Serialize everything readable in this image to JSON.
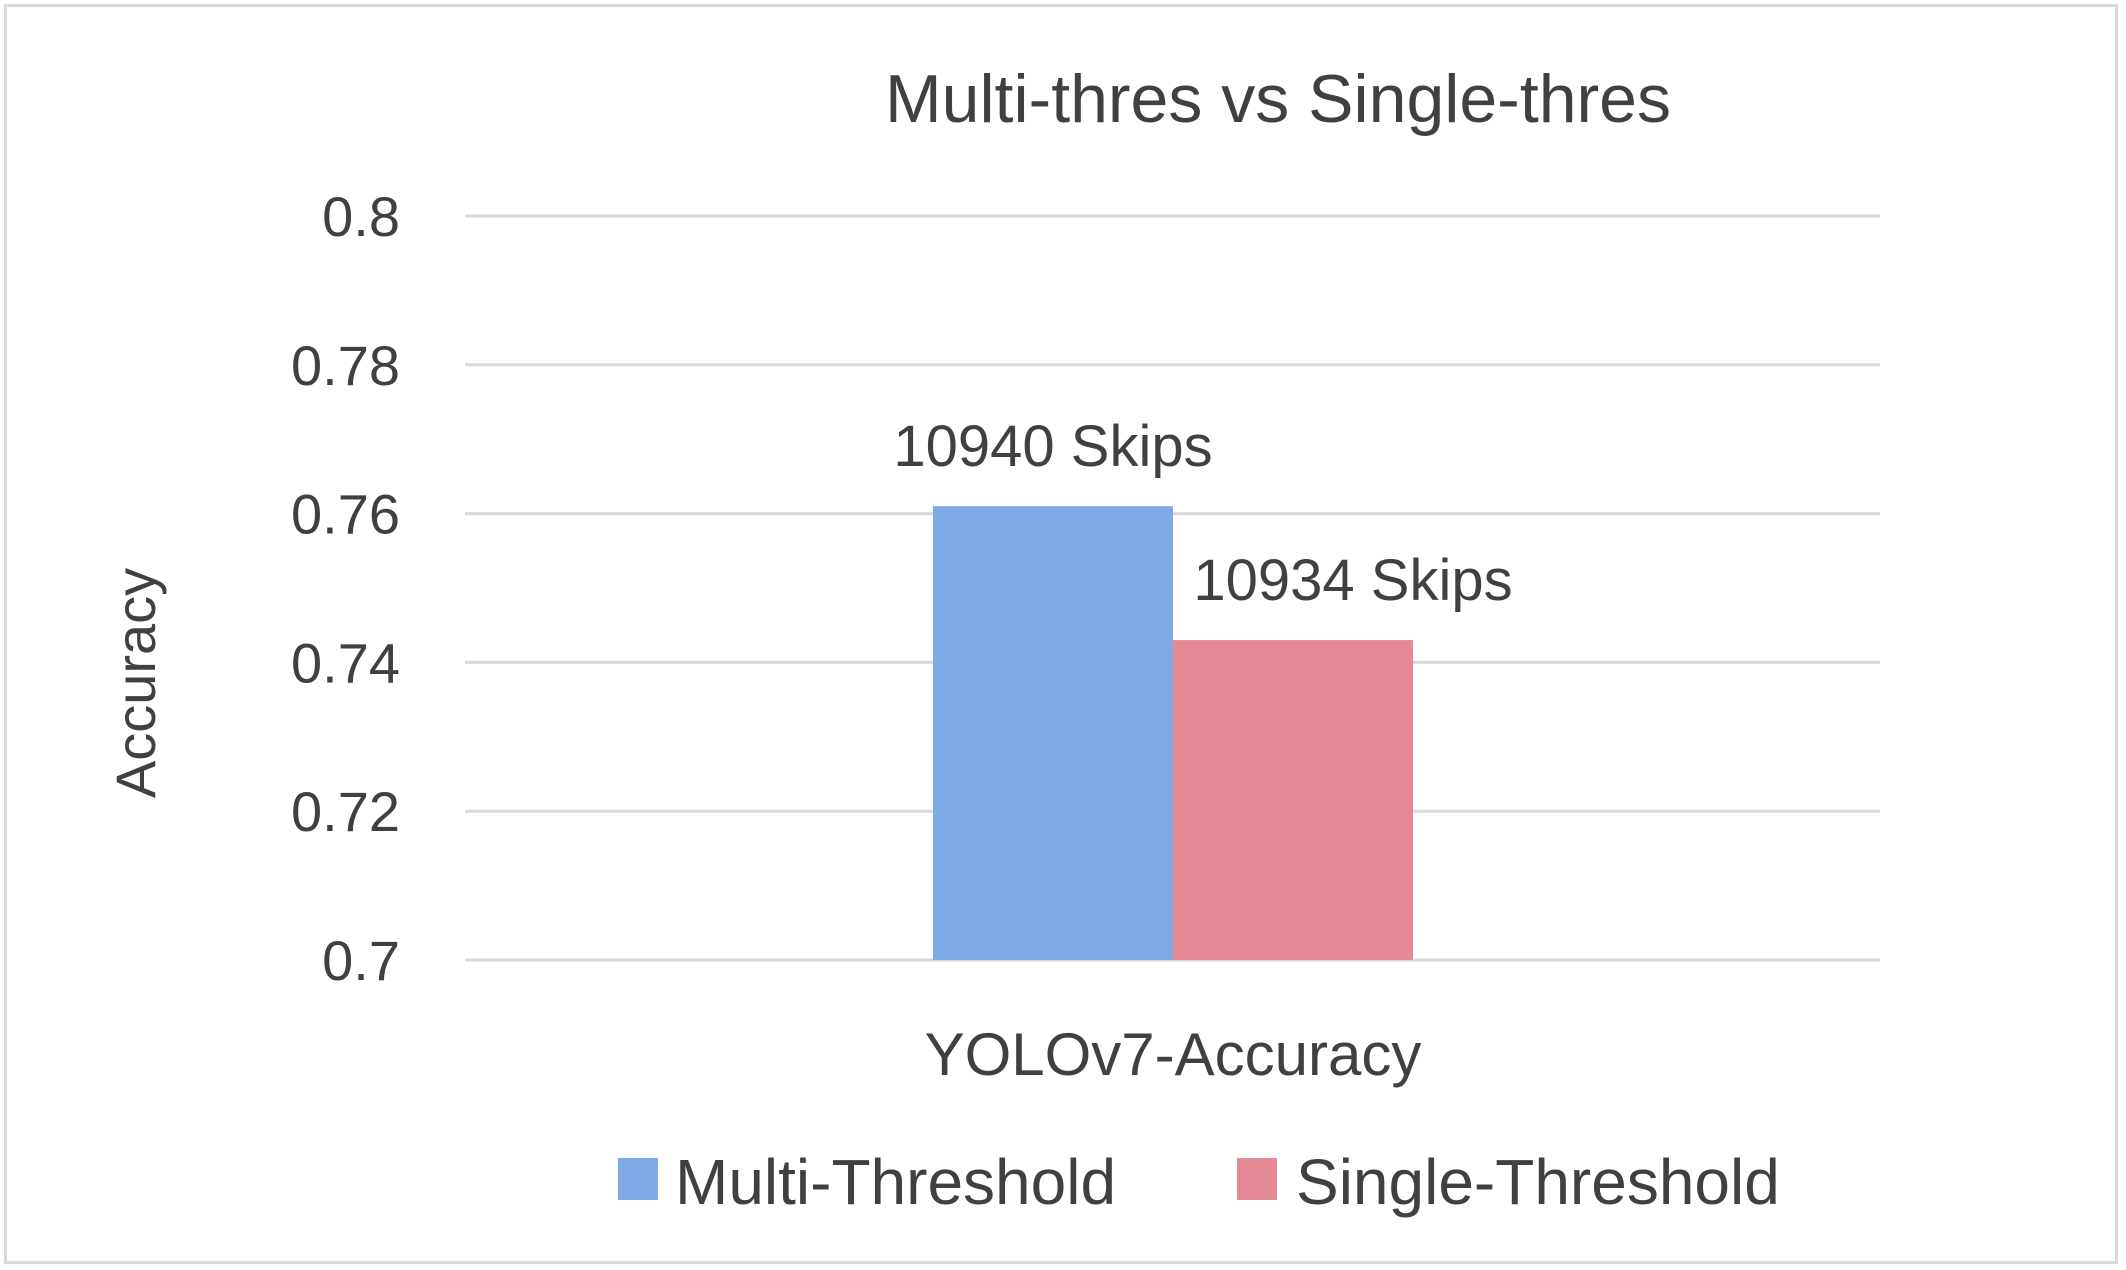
{
  "chart_data": {
    "type": "bar",
    "title": "Multi-thres vs Single-thres",
    "xlabel": "",
    "ylabel": "Accuracy",
    "categories": [
      "YOLOv7-Accuracy"
    ],
    "series": [
      {
        "name": "Multi-Threshold",
        "values": [
          0.761
        ],
        "color": "#7faae6",
        "data_label": "10940 Skips"
      },
      {
        "name": "Single-Threshold",
        "values": [
          0.743
        ],
        "color": "#e58994",
        "data_label": "10934 Skips"
      }
    ],
    "ylim": [
      0.7,
      0.8
    ],
    "yticks": [
      0.7,
      0.72,
      0.74,
      0.76,
      0.78,
      0.8
    ],
    "ytick_labels": [
      "0.7",
      "0.72",
      "0.74",
      "0.76",
      "0.78",
      "0.8"
    ],
    "grid": true,
    "legend_position": "bottom"
  }
}
